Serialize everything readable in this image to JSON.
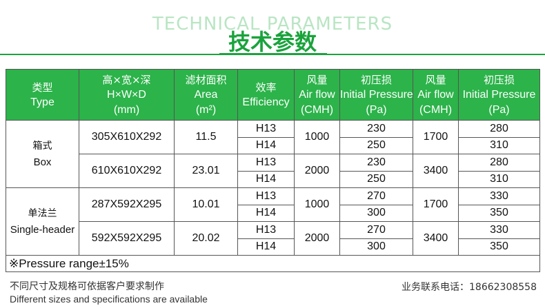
{
  "header": {
    "bg_title": "TECHNICAL PARAMETERS",
    "title": "技术参数"
  },
  "colors": {
    "accent": "#2cb34a",
    "title_green": "#1aa33c",
    "bg_title_green": "#b9e5c3"
  },
  "table": {
    "columns": [
      {
        "cn": "类型",
        "en": "Type",
        "unit": ""
      },
      {
        "cn": "高×宽×深",
        "en": "H×W×D",
        "unit": "(mm)"
      },
      {
        "cn": "滤材面积",
        "en": "Area",
        "unit": "(m²)"
      },
      {
        "cn": "效率",
        "en": "Efficiency",
        "unit": ""
      },
      {
        "cn": "风量",
        "en": "Air flow",
        "unit": "(CMH)"
      },
      {
        "cn": "初压损",
        "en": "Initial Pressure",
        "unit": "(Pa)"
      },
      {
        "cn": "风量",
        "en": "Air flow",
        "unit": "(CMH)"
      },
      {
        "cn": "初压损",
        "en": "Initial Pressure",
        "unit": "(Pa)"
      }
    ],
    "groups": [
      {
        "type_cn": "箱式",
        "type_en": "Box",
        "models": [
          {
            "size": "305X610X292",
            "area": "11.5",
            "airflow1": "1000",
            "airflow2": "1700",
            "rows": [
              {
                "eff": "H13",
                "p1": "230",
                "p2": "280"
              },
              {
                "eff": "H14",
                "p1": "250",
                "p2": "310"
              }
            ]
          },
          {
            "size": "610X610X292",
            "area": "23.01",
            "airflow1": "2000",
            "airflow2": "3400",
            "rows": [
              {
                "eff": "H13",
                "p1": "230",
                "p2": "280"
              },
              {
                "eff": "H14",
                "p1": "250",
                "p2": "310"
              }
            ]
          }
        ]
      },
      {
        "type_cn": "单法兰",
        "type_en": "Single-header",
        "models": [
          {
            "size": "287X592X295",
            "area": "10.01",
            "airflow1": "1000",
            "airflow2": "1700",
            "rows": [
              {
                "eff": "H13",
                "p1": "270",
                "p2": "330"
              },
              {
                "eff": "H14",
                "p1": "300",
                "p2": "350"
              }
            ]
          },
          {
            "size": "592X592X295",
            "area": "20.02",
            "airflow1": "2000",
            "airflow2": "3400",
            "rows": [
              {
                "eff": "H13",
                "p1": "270",
                "p2": "330"
              },
              {
                "eff": "H14",
                "p1": "300",
                "p2": "350"
              }
            ]
          }
        ]
      }
    ],
    "note": "※Pressure range±15%"
  },
  "footer": {
    "cn": "不同尺寸及规格可依据客户要求制作",
    "en": "Different sizes and specifications are available",
    "phone": "业务联系电话：18662308558"
  }
}
